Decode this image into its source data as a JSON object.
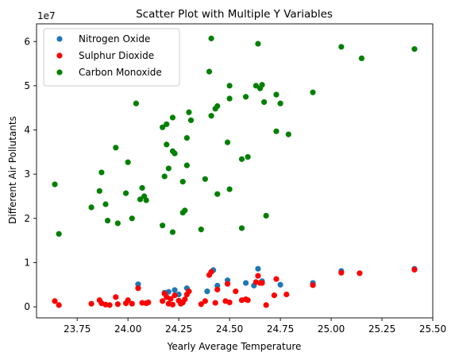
{
  "chart_data": {
    "type": "scatter",
    "title": "Scatter Plot with Multiple Y Variables",
    "xlabel": "Yearly Average Temperature",
    "ylabel": "Different Air Pollutants",
    "y_offset_label": "1e7",
    "xlim": [
      23.55,
      25.5
    ],
    "ylim": [
      -2500000,
      64000000
    ],
    "xticks": [
      23.75,
      24.0,
      24.25,
      24.5,
      24.75,
      25.0,
      25.25,
      25.5
    ],
    "xtick_labels": [
      "23.75",
      "24.00",
      "24.25",
      "24.50",
      "24.75",
      "25.00",
      "25.25",
      "25.50"
    ],
    "yticks": [
      0,
      10000000,
      20000000,
      30000000,
      40000000,
      50000000,
      60000000
    ],
    "ytick_labels": [
      "0",
      "1",
      "2",
      "3",
      "4",
      "5",
      "6"
    ],
    "grid": false,
    "legend_position": "top-left",
    "series": [
      {
        "name": "Nitrogen Oxide",
        "color": "#1f77b4",
        "points": [
          [
            24.05,
            5100000
          ],
          [
            24.18,
            3200000
          ],
          [
            24.2,
            3400000
          ],
          [
            24.23,
            3800000
          ],
          [
            24.29,
            4200000
          ],
          [
            24.42,
            8300000
          ],
          [
            24.44,
            4800000
          ],
          [
            24.49,
            6000000
          ],
          [
            24.58,
            5400000
          ],
          [
            24.64,
            8600000
          ],
          [
            24.66,
            5800000
          ],
          [
            24.75,
            5000000
          ],
          [
            24.91,
            5400000
          ],
          [
            25.05,
            8100000
          ],
          [
            25.41,
            8600000
          ],
          [
            24.39,
            3500000
          ],
          [
            24.62,
            4800000
          ],
          [
            24.25,
            2800000
          ]
        ]
      },
      {
        "name": "Sulphur Dioxide",
        "color": "#ff0000",
        "points": [
          [
            23.64,
            1300000
          ],
          [
            23.66,
            400000
          ],
          [
            23.82,
            700000
          ],
          [
            23.86,
            1500000
          ],
          [
            23.87,
            800000
          ],
          [
            23.89,
            500000
          ],
          [
            23.91,
            400000
          ],
          [
            23.94,
            2200000
          ],
          [
            23.95,
            600000
          ],
          [
            23.99,
            800000
          ],
          [
            24.0,
            1500000
          ],
          [
            24.02,
            700000
          ],
          [
            24.05,
            4200000
          ],
          [
            24.07,
            900000
          ],
          [
            24.09,
            800000
          ],
          [
            24.1,
            1000000
          ],
          [
            24.17,
            1300000
          ],
          [
            24.18,
            3000000
          ],
          [
            24.19,
            2200000
          ],
          [
            24.2,
            700000
          ],
          [
            24.21,
            1800000
          ],
          [
            24.22,
            500000
          ],
          [
            24.23,
            2600000
          ],
          [
            24.25,
            1400000
          ],
          [
            24.26,
            700000
          ],
          [
            24.27,
            1000000
          ],
          [
            24.28,
            1700000
          ],
          [
            24.29,
            2800000
          ],
          [
            24.3,
            3500000
          ],
          [
            24.36,
            600000
          ],
          [
            24.38,
            1300000
          ],
          [
            24.4,
            7200000
          ],
          [
            24.41,
            7900000
          ],
          [
            24.43,
            900000
          ],
          [
            24.44,
            3900000
          ],
          [
            24.48,
            1300000
          ],
          [
            24.49,
            5200000
          ],
          [
            24.5,
            1000000
          ],
          [
            24.53,
            3500000
          ],
          [
            24.56,
            1500000
          ],
          [
            24.58,
            1700000
          ],
          [
            24.59,
            1500000
          ],
          [
            24.63,
            5600000
          ],
          [
            24.64,
            7000000
          ],
          [
            24.65,
            5400000
          ],
          [
            24.66,
            5400000
          ],
          [
            24.68,
            400000
          ],
          [
            24.72,
            2600000
          ],
          [
            24.73,
            6300000
          ],
          [
            24.78,
            2800000
          ],
          [
            24.91,
            4900000
          ],
          [
            25.05,
            7700000
          ],
          [
            25.14,
            7600000
          ],
          [
            25.41,
            8400000
          ]
        ]
      },
      {
        "name": "Carbon Monoxide",
        "color": "#008000",
        "points": [
          [
            23.64,
            27700000
          ],
          [
            23.66,
            16500000
          ],
          [
            23.82,
            22500000
          ],
          [
            23.86,
            26200000
          ],
          [
            23.87,
            30400000
          ],
          [
            23.89,
            23200000
          ],
          [
            23.9,
            19500000
          ],
          [
            23.94,
            36000000
          ],
          [
            23.95,
            18900000
          ],
          [
            23.99,
            25700000
          ],
          [
            24.0,
            32700000
          ],
          [
            24.02,
            20000000
          ],
          [
            24.04,
            46000000
          ],
          [
            24.06,
            24300000
          ],
          [
            24.07,
            26900000
          ],
          [
            24.08,
            25000000
          ],
          [
            24.09,
            24100000
          ],
          [
            24.17,
            40600000
          ],
          [
            24.17,
            18400000
          ],
          [
            24.18,
            29500000
          ],
          [
            24.19,
            41300000
          ],
          [
            24.19,
            36700000
          ],
          [
            24.2,
            31300000
          ],
          [
            24.22,
            42800000
          ],
          [
            24.22,
            35200000
          ],
          [
            24.23,
            34700000
          ],
          [
            24.22,
            16900000
          ],
          [
            24.27,
            28300000
          ],
          [
            24.27,
            21300000
          ],
          [
            24.28,
            21800000
          ],
          [
            24.29,
            32000000
          ],
          [
            24.29,
            38200000
          ],
          [
            24.3,
            44000000
          ],
          [
            24.31,
            42200000
          ],
          [
            24.36,
            17500000
          ],
          [
            24.38,
            28900000
          ],
          [
            24.4,
            53200000
          ],
          [
            24.41,
            43200000
          ],
          [
            24.41,
            60700000
          ],
          [
            24.43,
            44800000
          ],
          [
            24.44,
            45400000
          ],
          [
            24.44,
            25500000
          ],
          [
            24.49,
            37200000
          ],
          [
            24.5,
            50000000
          ],
          [
            24.5,
            47100000
          ],
          [
            24.5,
            26600000
          ],
          [
            24.56,
            33400000
          ],
          [
            24.56,
            17800000
          ],
          [
            24.58,
            47500000
          ],
          [
            24.59,
            33900000
          ],
          [
            24.63,
            50000000
          ],
          [
            24.64,
            59500000
          ],
          [
            24.65,
            49400000
          ],
          [
            24.66,
            50200000
          ],
          [
            24.67,
            46300000
          ],
          [
            24.68,
            20600000
          ],
          [
            24.73,
            39700000
          ],
          [
            24.73,
            48000000
          ],
          [
            24.75,
            46000000
          ],
          [
            24.79,
            39000000
          ],
          [
            24.91,
            48500000
          ],
          [
            25.05,
            58800000
          ],
          [
            25.15,
            56200000
          ],
          [
            25.41,
            58300000
          ]
        ]
      }
    ]
  }
}
